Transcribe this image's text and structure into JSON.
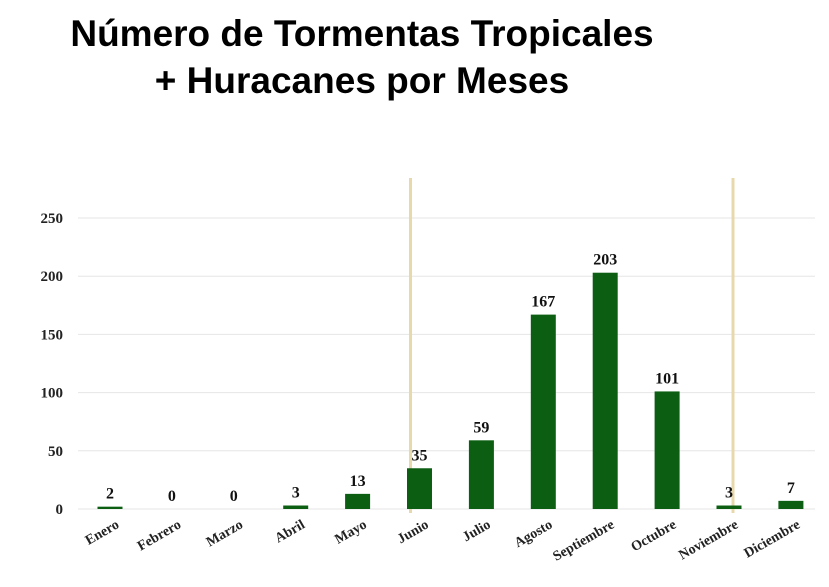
{
  "chart_data": {
    "type": "bar",
    "title_lines": [
      "Número de Tormentas Tropicales",
      "+ Huracanes por Meses"
    ],
    "categories": [
      "Enero",
      "Febrero",
      "Marzo",
      "Abril",
      "Mayo",
      "Junio",
      "Julio",
      "Agosto",
      "Septiembre",
      "Octubre",
      "Noviembre",
      "Diciembre"
    ],
    "values": [
      2,
      0,
      0,
      3,
      13,
      35,
      59,
      167,
      203,
      101,
      3,
      7
    ],
    "data_labels": [
      "2",
      "0",
      "0",
      "3",
      "13",
      "35",
      "59",
      "167",
      "203",
      "101",
      "3",
      "7"
    ],
    "ylim": [
      0,
      250
    ],
    "yticks": [
      0,
      50,
      100,
      150,
      200,
      250
    ],
    "grid": true,
    "legend": "none",
    "bar_color": "#0c5e12",
    "grid_color": "#e6e6e6",
    "season_marker_color": "#e8d9ac",
    "season_markers": [
      "Junio",
      "Noviembre"
    ]
  }
}
